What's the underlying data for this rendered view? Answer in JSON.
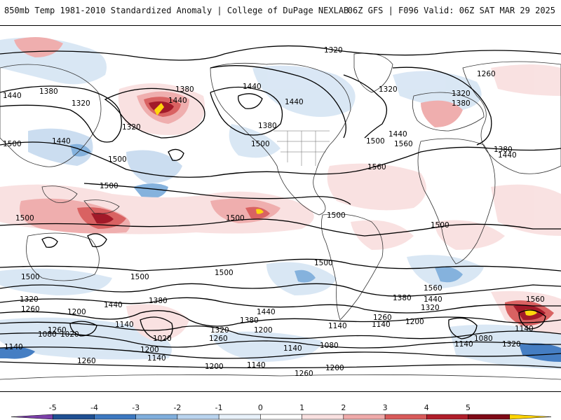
{
  "header": {
    "left_title": "850mb Temp 1981-2010 Standardized Anomaly | College of DuPage NEXLAB",
    "right_title": "06Z GFS | F096 Valid: 06Z SAT MAR 29 2025"
  },
  "colors": {
    "land_outline": "#333333",
    "contour": "#000000",
    "warm_light": "#f7d4d4",
    "warm_mid": "#e99a9a",
    "warm_strong": "#d14a4a",
    "warm_extreme": "#9e0e1e",
    "warm_peak": "#ffd400",
    "cold_light": "#d8e6f4",
    "cold_mid": "#a9c8e8",
    "cold_strong": "#5a95d2",
    "cold_extreme": "#1f4f92",
    "cold_peak": "#7b3fa8"
  },
  "contour_labels": [
    "1320",
    "1380",
    "1440",
    "1500",
    "1560",
    "1260",
    "1200",
    "1140",
    "1080",
    "1020"
  ],
  "map_labels": {
    "l1320_top": "1320",
    "l1440_left": "1440",
    "l1380_left": "1380",
    "l1320_left": "1320",
    "l1320_nw": "1320",
    "l1380_npac": "1380",
    "l1440_npac": "1440",
    "l1500_asia": "1500",
    "l1440_asia": "1440",
    "l1500_pac": "1500",
    "l1440_na": "1440",
    "l1380_na": "1380",
    "l1500_na": "1500",
    "l1440_can": "1440",
    "l1320_can": "1320",
    "l1440_atl": "1440",
    "l1500_atl": "1500",
    "l1560_atl": "1560",
    "l1560_us": "1560",
    "l1260_eu": "1260",
    "l1320_eu": "1320",
    "l1380_eu": "1380",
    "l1380_eu2": "1380",
    "l1440_eu": "1440",
    "l1500_eq_w": "1500",
    "l1500_eq_mid": "1500",
    "l1500_eq_am": "1500",
    "l1500_eq_af": "1500",
    "l1500_trop": "1500",
    "l1500_s1": "1500",
    "l1500_s2": "1500",
    "l1500_s3": "1500",
    "l1500_s4": "1500",
    "l1560_s": "1560",
    "l1560_se": "1560",
    "l1320_s1": "1320",
    "l1260_s1": "1260",
    "l1200_s1": "1200",
    "l1440_s1": "1440",
    "l1380_s1": "1380",
    "l1140_s1": "1140",
    "l1080_s1": "1080",
    "l1020_s1": "1020",
    "l1020_s2": "1020",
    "l1200_s2": "1200",
    "l1140_s2": "1140",
    "l1440_s2": "1440",
    "l1380_s2": "1380",
    "l1320_s2": "1320",
    "l1260_s2": "1260",
    "l1200_s3": "1200",
    "l1140_s3": "1140",
    "l1380_s3": "1380",
    "l1440_s3": "1440",
    "l1320_s3": "1320",
    "l1260_s3": "1260",
    "l1200_s4": "1200",
    "l1140_s4": "1140",
    "l1080_s4": "1080",
    "l1140_s5": "1140",
    "l1080_s5": "1080",
    "l1140_s6": "1140",
    "l1200_s7": "1200",
    "l1260_s7": "1260",
    "l1260_s8": "1260",
    "l1140_s8": "1140",
    "l1200_s8": "1200",
    "l1140_s9": "1140",
    "l1320_s9": "1320",
    "l1140_s10": "1140",
    "l1260_s10": "1260"
  },
  "colorbar": {
    "ticks": [
      "-5",
      "-4",
      "-3",
      "-2",
      "-1",
      "0",
      "1",
      "2",
      "3",
      "4",
      "5"
    ],
    "colors": [
      "#7b3fa8",
      "#1f4f92",
      "#3c78c0",
      "#7faedc",
      "#b9d3ee",
      "#e8f1fa",
      "#ffffff",
      "#f9e0e0",
      "#efaaaa",
      "#d85a5a",
      "#b01e2a",
      "#7e0a16",
      "#ffd400"
    ]
  }
}
